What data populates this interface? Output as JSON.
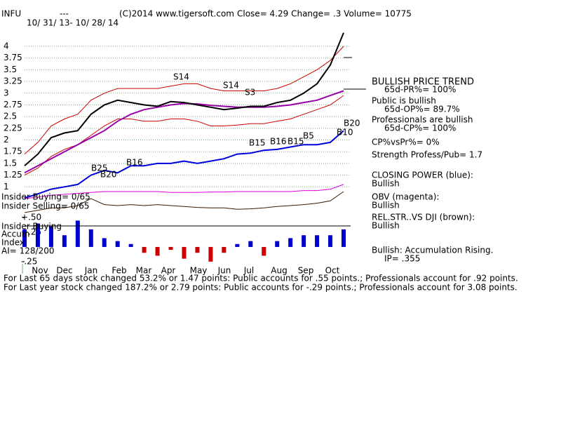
{
  "header": {
    "symbol": "INFU",
    "dash": "---",
    "copyright": "(C)2014 www.tigersoft.com",
    "quote": "Close=  4.29  Change= .3 Volume= 10775",
    "period": "10/ 31/ 13- 10/ 28/ 14"
  },
  "months": [
    "Nov",
    "Dec",
    "Jan",
    "Feb",
    "Mar",
    "Apr",
    "May",
    "Jun",
    "Jul",
    "Aug",
    "Sep",
    "Oct"
  ],
  "annotations": [
    "S14",
    "S14",
    "S3",
    "B15",
    "B16",
    "B15",
    "B5",
    "B25",
    "B20",
    "B16",
    "B20",
    "B10"
  ],
  "left_labels": [
    "Insider Buying= 0/65",
    "Insider Selling= 0/65",
    "Insider Buying",
    "Accum",
    "Index",
    "AI= 128/200"
  ],
  "right_panel": [
    "BULLISH PRICE TREND",
    "65d-PR%= 100%",
    "Public is bullish",
    "65d-OP%= 89.7%",
    "Professionals are bullish",
    "65d-CP%= 100%",
    "CP%vsPr%=  0%",
    "Strength Profess/Pub= 1.7",
    "CLOSING POWER (blue):",
    "Bullish",
    "OBV (magenta):",
    "Bullish",
    "REL.STR..VS DJI (brown):",
    "Bullish",
    "Bullish: Accumulation Rising.",
    "IP=  .355"
  ],
  "footer": [
    "For Last 65 days stock changed  53.2% or  1.47 points:  Public accounts for  .55 points.;  Professionals account for  .92 points.",
    "For Last year stock changed  187.2% or  2.79 points:  Public accounts for -.29 points.;  Professionals account for  3.08 points."
  ],
  "chart_data": [
    {
      "type": "line",
      "ylim": [
        0.3,
        4.6
      ],
      "yticks": [
        1,
        1.25,
        1.5,
        1.75,
        2,
        2.25,
        2.5,
        2.75,
        3,
        3.25,
        3.5,
        3.75,
        4
      ],
      "grid": true,
      "series": [
        {
          "color": "#cc0000",
          "values": [
            1.7,
            1.95,
            2.3,
            2.45,
            2.55,
            2.85,
            3.0,
            3.1,
            3.1,
            3.1,
            3.1,
            3.15,
            3.2,
            3.2,
            3.1,
            3.05,
            3.05,
            3.05,
            3.05,
            3.1,
            3.2,
            3.35,
            3.5,
            3.7,
            4.0
          ]
        },
        {
          "color": "#cc0000",
          "values": [
            1.25,
            1.4,
            1.65,
            1.8,
            1.9,
            2.1,
            2.3,
            2.45,
            2.45,
            2.4,
            2.4,
            2.45,
            2.45,
            2.4,
            2.3,
            2.3,
            2.32,
            2.35,
            2.35,
            2.4,
            2.45,
            2.55,
            2.65,
            2.75,
            2.95
          ]
        },
        {
          "color": "#9900aa",
          "values": [
            1.3,
            1.45,
            1.6,
            1.75,
            1.9,
            2.05,
            2.2,
            2.4,
            2.55,
            2.65,
            2.7,
            2.75,
            2.78,
            2.77,
            2.74,
            2.72,
            2.7,
            2.7,
            2.7,
            2.72,
            2.75,
            2.8,
            2.85,
            2.95,
            3.05
          ]
        },
        {
          "color": "#000000",
          "values": [
            1.45,
            1.7,
            2.05,
            2.15,
            2.2,
            2.55,
            2.75,
            2.85,
            2.8,
            2.75,
            2.72,
            2.82,
            2.8,
            2.75,
            2.7,
            2.65,
            2.68,
            2.72,
            2.72,
            2.8,
            2.85,
            3.0,
            3.2,
            3.6,
            4.29
          ]
        },
        {
          "color": "#0000dd",
          "values": [
            0.76,
            0.85,
            0.95,
            1.0,
            1.05,
            1.25,
            1.35,
            1.3,
            1.45,
            1.45,
            1.5,
            1.5,
            1.55,
            1.5,
            1.55,
            1.6,
            1.7,
            1.72,
            1.78,
            1.8,
            1.85,
            1.9,
            1.9,
            1.95,
            2.2
          ]
        },
        {
          "color": "#dd00dd",
          "values": [
            0.75,
            0.78,
            0.82,
            0.84,
            0.86,
            0.88,
            0.9,
            0.9,
            0.9,
            0.9,
            0.9,
            0.88,
            0.88,
            0.88,
            0.89,
            0.89,
            0.9,
            0.9,
            0.9,
            0.9,
            0.9,
            0.92,
            0.92,
            0.95,
            1.05
          ]
        },
        {
          "color": "#3a1a00",
          "values": [
            0.45,
            0.5,
            0.55,
            0.55,
            0.6,
            0.75,
            0.62,
            0.6,
            0.62,
            0.6,
            0.62,
            0.6,
            0.58,
            0.56,
            0.55,
            0.55,
            0.52,
            0.53,
            0.55,
            0.58,
            0.6,
            0.62,
            0.65,
            0.7,
            0.9
          ]
        }
      ]
    },
    {
      "type": "bar",
      "ylim": [
        -0.3,
        0.55
      ],
      "yticks": [
        {
          "value": 0.5,
          "label": "+.50"
        },
        {
          "value": 0.25,
          "label": "+.25"
        },
        {
          "value": -0.25,
          "label": "-.25"
        }
      ],
      "values": [
        0.3,
        0.4,
        0.35,
        0.2,
        0.45,
        0.3,
        0.15,
        0.1,
        0.05,
        -0.1,
        -0.15,
        -0.05,
        -0.2,
        -0.1,
        -0.25,
        -0.1,
        0.05,
        0.1,
        -0.15,
        0.1,
        0.15,
        0.2,
        0.2,
        0.2,
        0.3
      ],
      "colors": {
        "positive": "#0000cc",
        "negative": "#cc0000"
      }
    }
  ]
}
